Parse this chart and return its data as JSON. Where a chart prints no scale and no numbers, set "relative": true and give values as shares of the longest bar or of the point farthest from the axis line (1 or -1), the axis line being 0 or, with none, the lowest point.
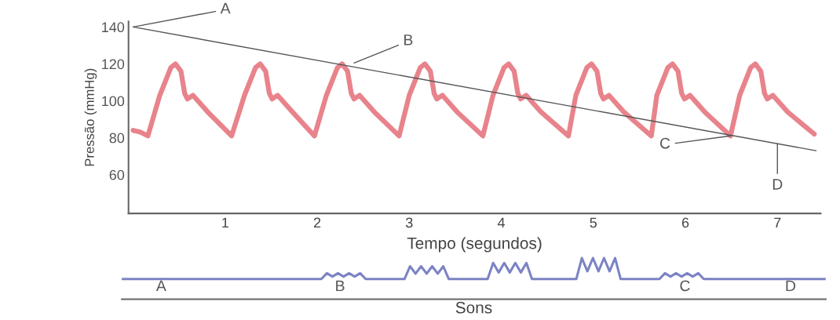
{
  "chart_data": [
    {
      "type": "line",
      "xlabel": "Tempo (segundos)",
      "ylabel": "Pressão (mmHg)",
      "xlim": [
        -0.05,
        7.47
      ],
      "ylim": [
        39,
        143
      ],
      "xticks": [
        1,
        2,
        3,
        4,
        5,
        6,
        7
      ],
      "yticks": [
        60,
        80,
        100,
        120,
        140
      ],
      "grid": false,
      "legend": false,
      "marker": "none",
      "series": [
        {
          "color": "#e8838c",
          "x": [
            0,
            0.08,
            0.16,
            0.29,
            0.41,
            0.46,
            0.52,
            0.56,
            0.59,
            0.65,
            0.81,
            1.07,
            1.21,
            1.33,
            1.38,
            1.44,
            1.48,
            1.51,
            1.57,
            1.73,
            1.97,
            2.1,
            2.22,
            2.27,
            2.33,
            2.37,
            2.4,
            2.46,
            2.62,
            2.89,
            3.0,
            3.12,
            3.17,
            3.23,
            3.27,
            3.3,
            3.36,
            3.52,
            3.8,
            3.91,
            4.03,
            4.08,
            4.14,
            4.18,
            4.21,
            4.27,
            4.43,
            4.73,
            4.81,
            4.93,
            4.98,
            5.04,
            5.08,
            5.11,
            5.17,
            5.33,
            5.63,
            5.69,
            5.81,
            5.86,
            5.92,
            5.96,
            5.99,
            6.05,
            6.21,
            6.49,
            6.59,
            6.71,
            6.76,
            6.82,
            6.86,
            6.89,
            6.95,
            7.11,
            7.4
          ],
          "values": [
            84,
            83,
            81,
            103,
            118,
            120,
            116,
            104,
            101,
            103,
            94,
            81,
            103,
            118,
            120,
            116,
            104,
            101,
            103,
            94,
            81,
            103,
            118,
            120,
            116,
            104,
            101,
            103,
            94,
            81,
            103,
            118,
            120,
            116,
            104,
            101,
            103,
            94,
            81,
            103,
            118,
            120,
            116,
            104,
            101,
            103,
            94,
            81,
            103,
            118,
            120,
            116,
            104,
            101,
            103,
            94,
            81,
            103,
            118,
            120,
            116,
            104,
            101,
            103,
            94,
            81,
            103,
            118,
            120,
            116,
            104,
            101,
            103,
            94,
            82
          ]
        },
        {
          "color": "#555555",
          "x": [
            0,
            7.42
          ],
          "values": [
            140,
            73
          ]
        }
      ],
      "annotations": [
        {
          "text": "A",
          "x": 0,
          "y": 140
        },
        {
          "text": "B",
          "x": 2.4,
          "y": 120.5
        },
        {
          "text": "C",
          "x": 6.49,
          "y": 81
        },
        {
          "text": "D",
          "x": 7.0,
          "y": 76.8
        }
      ]
    },
    {
      "type": "line",
      "relative": true,
      "xlabel": "Sons",
      "tick_labels": false,
      "grid": false,
      "legend": false,
      "categories": [
        null,
        null,
        null,
        null,
        null,
        null,
        null,
        null,
        null,
        null,
        null,
        null,
        null,
        null,
        null,
        null,
        null,
        null,
        null,
        null,
        null,
        null,
        null,
        null,
        null,
        null,
        null,
        null,
        null,
        null,
        null,
        null,
        null,
        null,
        null,
        null,
        null,
        null,
        null,
        null,
        null,
        null,
        null,
        null,
        null,
        null,
        null,
        null,
        null,
        null,
        null,
        null,
        null,
        null,
        null,
        null,
        null,
        null,
        null,
        null,
        null,
        null,
        null,
        null,
        null,
        null,
        null,
        null,
        null,
        null,
        null,
        null,
        null,
        null,
        null,
        null,
        null,
        null,
        null,
        null,
        null,
        null,
        null,
        null,
        null,
        null,
        null,
        null,
        null,
        null,
        null,
        null,
        null,
        null,
        null,
        null,
        null,
        null,
        null,
        null,
        null,
        null,
        null,
        null,
        null,
        null,
        null,
        null,
        null,
        null,
        null,
        null,
        null,
        null,
        null,
        null,
        null,
        null,
        null,
        null,
        null,
        null,
        null,
        null,
        null,
        null,
        null,
        null
      ],
      "series": [
        {
          "color": "#7b83c4",
          "values": [
            0.49,
            0.49,
            0.49,
            0.49,
            0.49,
            0.49,
            0.49,
            0.49,
            0.49,
            0.49,
            0.49,
            0.49,
            0.49,
            0.49,
            0.49,
            0.49,
            0.49,
            0.49,
            0.49,
            0.49,
            0.49,
            0.49,
            0.49,
            0.49,
            0.49,
            0.49,
            0.49,
            0.49,
            0.49,
            0.49,
            0.49,
            0.49,
            0.49,
            0.49,
            0.49,
            0.49,
            0.49,
            0.63,
            0.55,
            0.63,
            0.55,
            0.63,
            0.55,
            0.63,
            0.49,
            0.49,
            0.49,
            0.49,
            0.49,
            0.49,
            0.49,
            0.49,
            0.8,
            0.62,
            0.8,
            0.62,
            0.8,
            0.62,
            0.8,
            0.49,
            0.49,
            0.49,
            0.49,
            0.49,
            0.49,
            0.49,
            0.49,
            0.88,
            0.65,
            0.88,
            0.65,
            0.88,
            0.65,
            0.88,
            0.49,
            0.49,
            0.49,
            0.49,
            0.49,
            0.49,
            0.49,
            0.49,
            0.49,
            1.0,
            0.68,
            1.0,
            0.68,
            1.0,
            0.68,
            1.0,
            0.49,
            0.49,
            0.49,
            0.49,
            0.49,
            0.49,
            0.49,
            0.49,
            0.63,
            0.55,
            0.63,
            0.55,
            0.63,
            0.55,
            0.63,
            0.49,
            0.49,
            0.49,
            0.49,
            0.49,
            0.49,
            0.49,
            0.49,
            0.49,
            0.49,
            0.49,
            0.49,
            0.49,
            0.49,
            0.49,
            0.49,
            0.49,
            0.49,
            0.49,
            0.49,
            0.49,
            0.49,
            0.49
          ]
        }
      ],
      "annotations": [
        "A",
        "B",
        "C",
        "D"
      ]
    }
  ]
}
